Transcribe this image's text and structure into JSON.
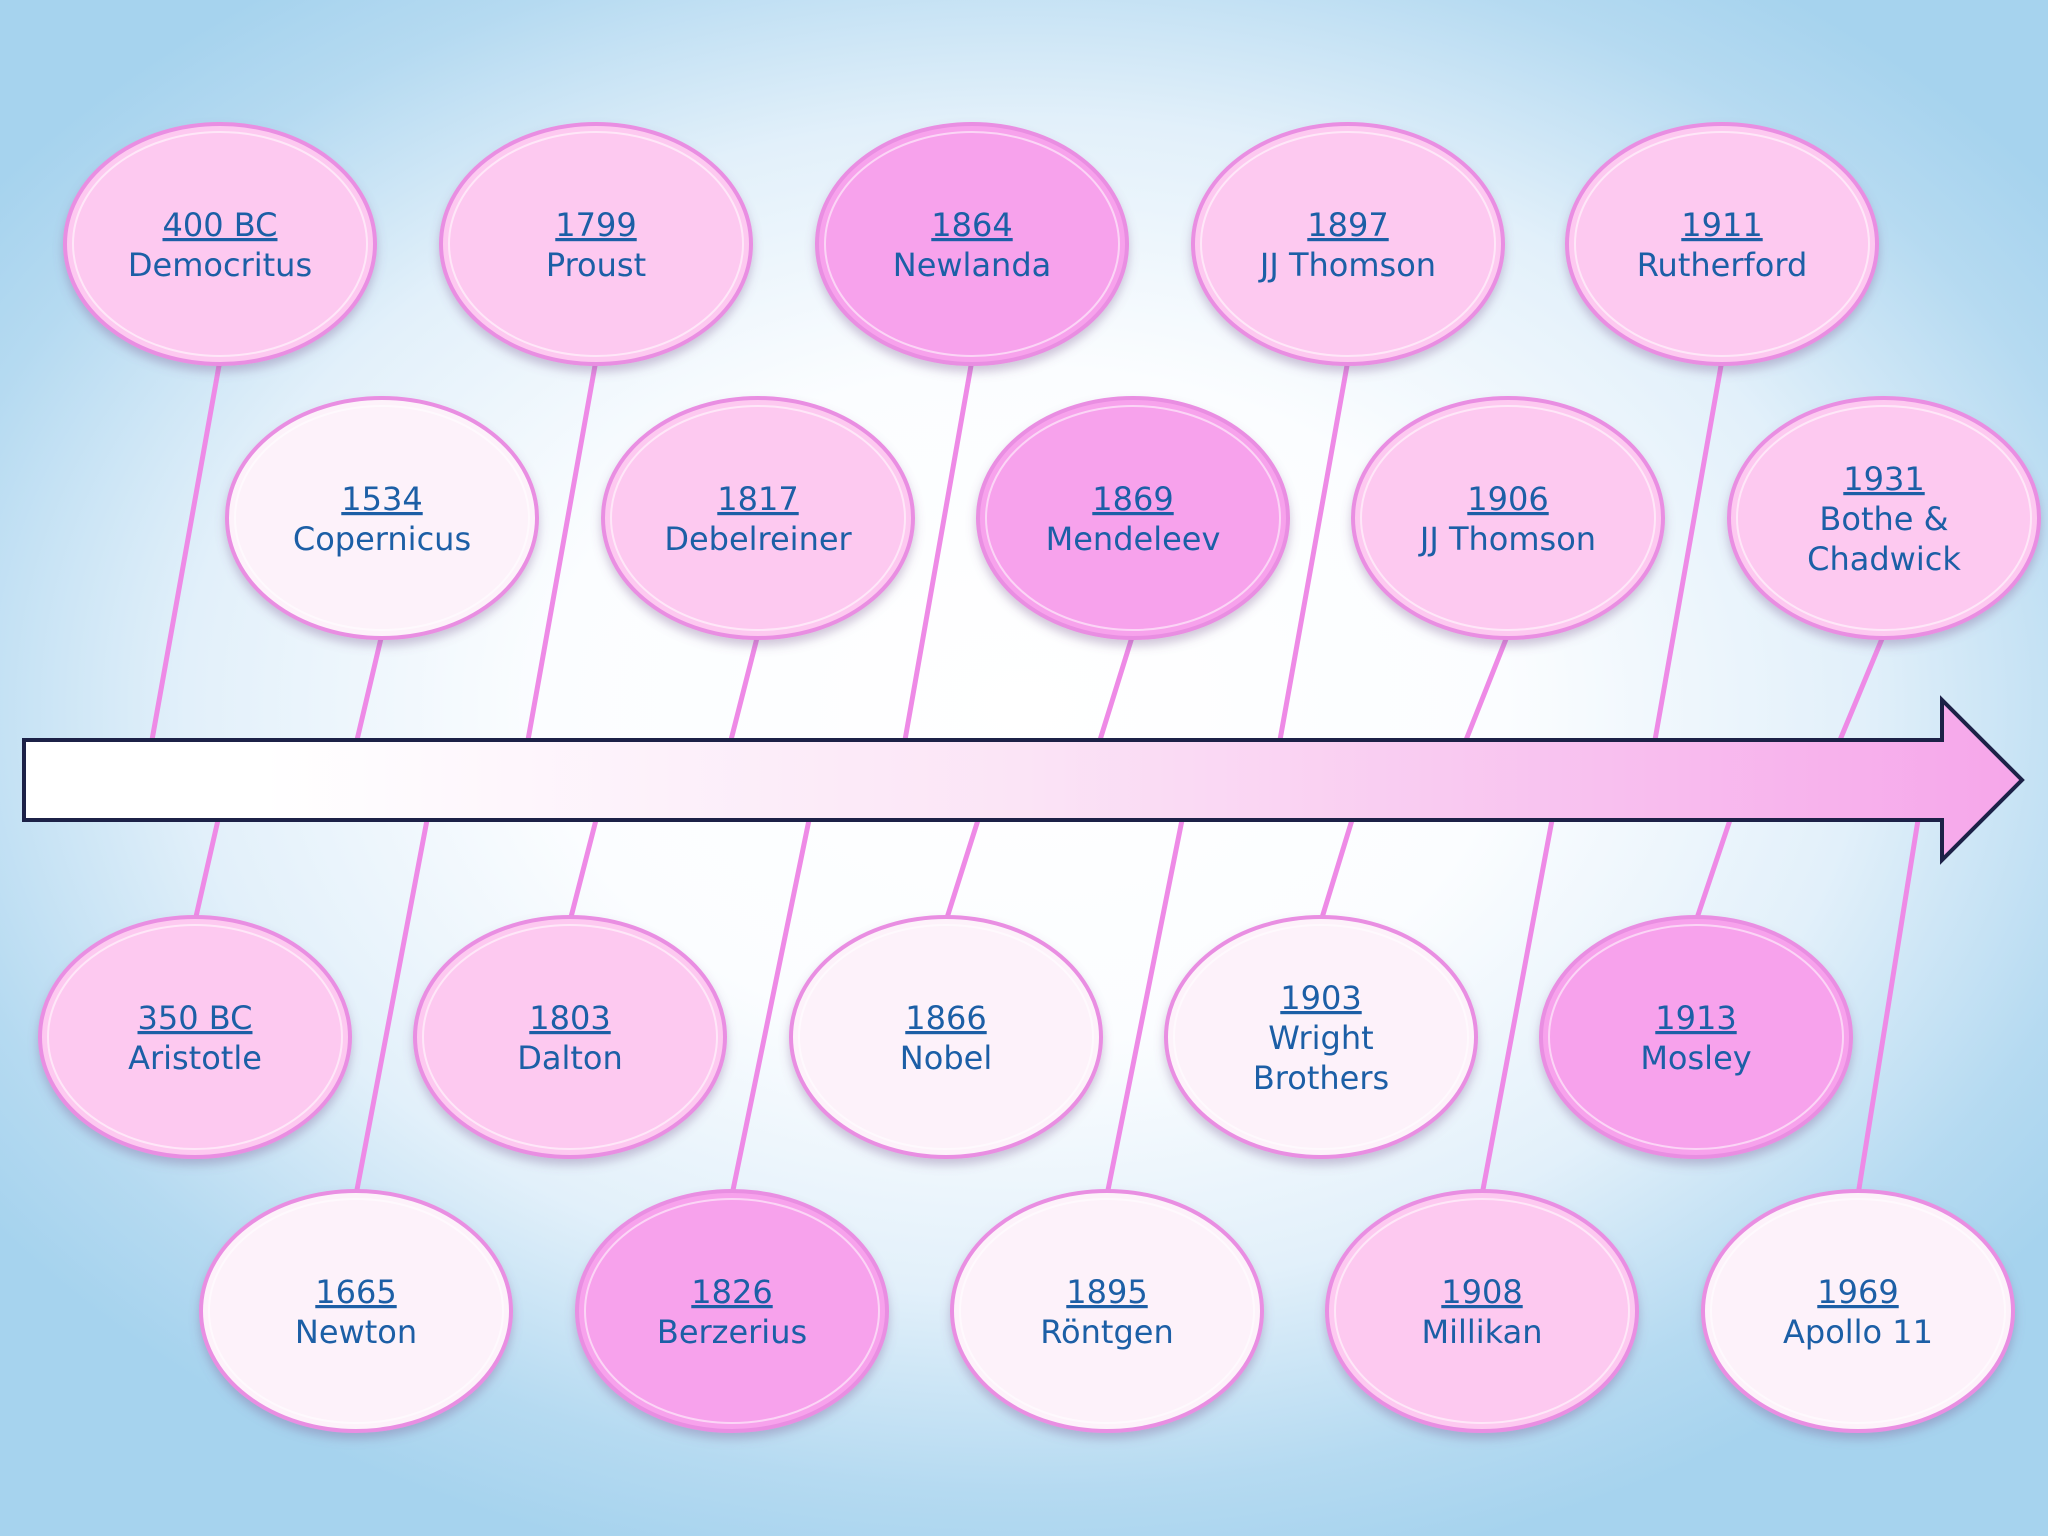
{
  "colors": {
    "background_center": "#ffffff",
    "background_edge": "#a6d3ee",
    "connector": "#ee8ae6",
    "bubble_border": "#e98ee2",
    "text": "#1c5fa6",
    "arrow_outline": "#1c2147",
    "fill_light": "#fdf2fa",
    "fill_medium": "#fdc9f0",
    "fill_strong": "#f7a2ec"
  },
  "timeline": {
    "arrow_gradient": [
      "#ffffff",
      "#fbe4f6",
      "#f6a6ea"
    ],
    "top_row": [
      {
        "year": "400 BC",
        "name": "Democritus",
        "fill": "medium"
      },
      {
        "year": "1799",
        "name": "Proust",
        "fill": "medium"
      },
      {
        "year": "1864",
        "name": "Newlanda",
        "fill": "strong"
      },
      {
        "year": "1897",
        "name": "JJ Thomson",
        "fill": "medium"
      },
      {
        "year": "1911",
        "name": "Rutherford",
        "fill": "medium"
      }
    ],
    "upper_row": [
      {
        "year": "1534",
        "name": "Copernicus",
        "fill": "light"
      },
      {
        "year": "1817",
        "name": "Debelreiner",
        "fill": "medium"
      },
      {
        "year": "1869",
        "name": "Mendeleev",
        "fill": "strong"
      },
      {
        "year": "1906",
        "name": "JJ Thomson",
        "fill": "medium"
      },
      {
        "year": "1931",
        "name": "Bothe & Chadwick",
        "fill": "medium"
      }
    ],
    "lower_row": [
      {
        "year": "350 BC",
        "name": "Aristotle",
        "fill": "medium"
      },
      {
        "year": "1803",
        "name": "Dalton",
        "fill": "medium"
      },
      {
        "year": "1866",
        "name": "Nobel",
        "fill": "light"
      },
      {
        "year": "1903",
        "name": "Wright Brothers",
        "fill": "light"
      },
      {
        "year": "1913",
        "name": "Mosley",
        "fill": "strong"
      }
    ],
    "bottom_row": [
      {
        "year": "1665",
        "name": "Newton",
        "fill": "light"
      },
      {
        "year": "1826",
        "name": "Berzerius",
        "fill": "strong"
      },
      {
        "year": "1895",
        "name": "Röntgen",
        "fill": "light"
      },
      {
        "year": "1908",
        "name": "Millikan",
        "fill": "medium"
      },
      {
        "year": "1969",
        "name": "Apollo 11",
        "fill": "light"
      }
    ]
  }
}
